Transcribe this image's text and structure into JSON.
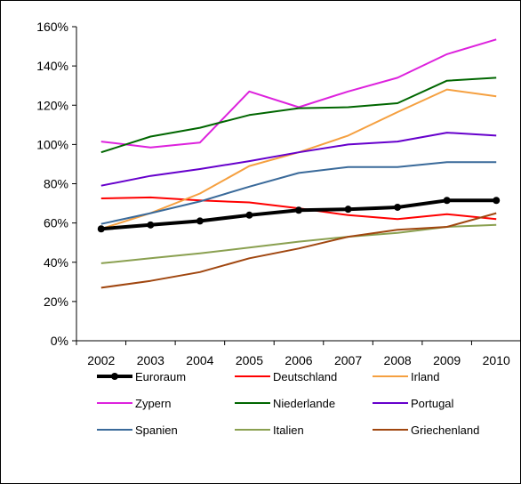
{
  "chart_data": {
    "type": "line",
    "title": "",
    "xlabel": "",
    "ylabel": "",
    "x": [
      "2002",
      "2003",
      "2004",
      "2005",
      "2006",
      "2007",
      "2008",
      "2009",
      "2010"
    ],
    "ylim": [
      0,
      160
    ],
    "y_ticks": [
      "0%",
      "20%",
      "40%",
      "60%",
      "80%",
      "100%",
      "120%",
      "140%",
      "160%"
    ],
    "y_tick_values": [
      0,
      20,
      40,
      60,
      80,
      100,
      120,
      140,
      160
    ],
    "grid": false,
    "legend_position": "bottom",
    "series": [
      {
        "name": "Euroraum",
        "color": "#000000",
        "bold": true,
        "markers": true,
        "values": [
          57,
          59,
          61,
          64,
          66.5,
          67,
          68,
          71.5,
          71.5
        ]
      },
      {
        "name": "Deutschland",
        "color": "#FF0000",
        "values": [
          72.5,
          73,
          71.5,
          70.5,
          67.5,
          64,
          62,
          64.5,
          62
        ]
      },
      {
        "name": "Irland",
        "color": "#F5A040",
        "values": [
          57,
          65,
          75,
          89,
          96,
          104.5,
          116.5,
          128,
          124.5
        ]
      },
      {
        "name": "Zypern",
        "color": "#DD22DD",
        "values": [
          101.5,
          98.5,
          101,
          127,
          119,
          127,
          134,
          146,
          153.5
        ]
      },
      {
        "name": "Niederlande",
        "color": "#006600",
        "values": [
          96,
          104,
          108.5,
          115,
          118.5,
          119,
          121,
          132.5,
          134
        ]
      },
      {
        "name": "Portugal",
        "color": "#6600CC",
        "values": [
          79,
          84,
          87.5,
          91.5,
          96,
          100,
          101.5,
          106,
          104.5
        ]
      },
      {
        "name": "Spanien",
        "color": "#3A6A9A",
        "values": [
          59.5,
          65,
          71,
          78.5,
          85.5,
          88.5,
          88.5,
          91,
          91
        ]
      },
      {
        "name": "Italien",
        "color": "#8AA050",
        "values": [
          39.5,
          42,
          44.5,
          47.5,
          50.5,
          53,
          55,
          58,
          59
        ]
      },
      {
        "name": "Griechenland",
        "color": "#A0460F",
        "values": [
          27,
          30.5,
          35,
          42,
          47,
          53,
          56.5,
          58,
          65
        ]
      }
    ]
  }
}
